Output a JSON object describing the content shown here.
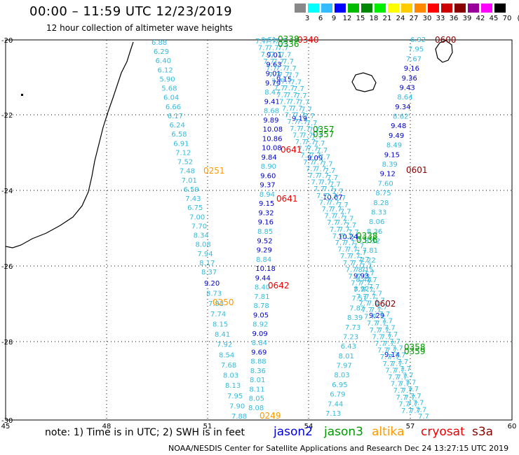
{
  "header": {
    "title": "00:00  –  11:59 UTC 12/23/2019",
    "subtitle": "12 hour collection of altimeter wave heights"
  },
  "legend": {
    "labels": [
      "3",
      "6",
      "9",
      "12",
      "15",
      "18",
      "21",
      "24",
      "27",
      "30",
      "33",
      "36",
      "39",
      "42",
      "45",
      "70",
      "(ft)"
    ],
    "colors": [
      "#888888",
      "#00ffff",
      "#33bbff",
      "#0000ff",
      "#00bb00",
      "#008800",
      "#00ee00",
      "#ffff00",
      "#ffcc00",
      "#ff8800",
      "#ff0000",
      "#cc0000",
      "#880000",
      "#990099",
      "#ff00ff",
      "#000000"
    ]
  },
  "axes": {
    "lat_labels": [
      "-20",
      "-22",
      "-24",
      "-26",
      "-28",
      "-30"
    ],
    "lon_labels": [
      "45",
      "48",
      "51",
      "54",
      "57",
      "60"
    ]
  },
  "tracks": {
    "track1": [
      "6.88",
      "6.29",
      "6.40",
      "6.12",
      "5.90",
      "5.68",
      "6.04",
      "6.66",
      "6.17",
      "6.24",
      "6.58",
      "6.91",
      "7.12",
      "7.52",
      "7.48",
      "7.01",
      "6.59",
      "7.43",
      "6.75",
      "7.00",
      "7.70",
      "8.34",
      "8.08",
      "7.94",
      "8.17",
      "8.37"
    ],
    "track2_lower": [
      "9.20",
      "8.73",
      "7.93",
      "7.74",
      "8.15",
      "8.41",
      "7.92",
      "8.54",
      "7.68",
      "8.03",
      "8.13",
      "7.95",
      "7.90",
      "7.88"
    ],
    "track2_upper": [
      "9.01",
      "9.63",
      "9.01",
      "9.79",
      "8.47",
      "9.41",
      "8.68",
      "9.89",
      "10.08",
      "10.86",
      "10.08",
      "9.84",
      "8.90",
      "9.60",
      "9.37",
      "8.94",
      "9.15",
      "9.32",
      "9.16",
      "8.85",
      "9.52",
      "9.29",
      "8.84",
      "10.18",
      "9.44",
      "8.40",
      "7.81",
      "8.78",
      "9.05",
      "8.92",
      "9.09",
      "8.84",
      "9.69",
      "8.88",
      "8.36",
      "8.01",
      "8.11",
      "8.05",
      "8.08"
    ],
    "track3": [
      "6.92",
      "7.95",
      "7.67",
      "9.16",
      "9.36",
      "9.43",
      "8.64",
      "9.34",
      "8.62",
      "9.48",
      "9.49",
      "8.49",
      "9.15",
      "8.39",
      "9.12",
      "7.60",
      "8.75",
      "8.28",
      "8.33",
      "8.06",
      "8.36",
      "8.52",
      "7.81",
      "7.22",
      "8.15",
      "8.48",
      "8.92",
      "7.51",
      "7.82",
      "8.39",
      "7.73",
      "7.23",
      "6.43",
      "8.01",
      "7.97",
      "8.03",
      "6.95",
      "6.79",
      "7.44",
      "7.13"
    ],
    "mid_fragments": [
      "6.51",
      "9.15",
      "9.19",
      "9.09",
      "10.67",
      "10.24",
      "9.93",
      "9.29",
      "9.14"
    ]
  },
  "time_labels": [
    {
      "text": "0340",
      "sat": "cryosat"
    },
    {
      "text": "0338",
      "sat": "jason3"
    },
    {
      "text": "0336",
      "sat": "jason3"
    },
    {
      "text": "0600",
      "sat": "s3a"
    },
    {
      "text": "0357",
      "sat": "jason3"
    },
    {
      "text": "0357",
      "sat": "jason3"
    },
    {
      "text": "0641",
      "sat": "cryosat"
    },
    {
      "text": "0601",
      "sat": "s3a"
    },
    {
      "text": "0251",
      "sat": "altika"
    },
    {
      "text": "0641",
      "sat": "cryosat"
    },
    {
      "text": "0338",
      "sat": "jason3"
    },
    {
      "text": "0336",
      "sat": "jason3"
    },
    {
      "text": "0642",
      "sat": "cryosat"
    },
    {
      "text": "0250",
      "sat": "altika"
    },
    {
      "text": "0602",
      "sat": "s3a"
    },
    {
      "text": "0358",
      "sat": "jason3"
    },
    {
      "text": "0359",
      "sat": "jason3"
    },
    {
      "text": "0249",
      "sat": "altika"
    }
  ],
  "satellites": [
    {
      "name": "jason2",
      "color": "#0000dd"
    },
    {
      "name": "jason3",
      "color": "#009900"
    },
    {
      "name": "altika",
      "color": "#ff9900"
    },
    {
      "name": "cryosat",
      "color": "#ee0000"
    },
    {
      "name": "s3a",
      "color": "#880000"
    }
  ],
  "footer": {
    "note": "note:  1) Time is in UTC;  2) SWH is in feet",
    "credit": "NOAA/NESDIS Center for Satellite Applications and Research     Dec 24 13:27:15 UTC 2019"
  }
}
